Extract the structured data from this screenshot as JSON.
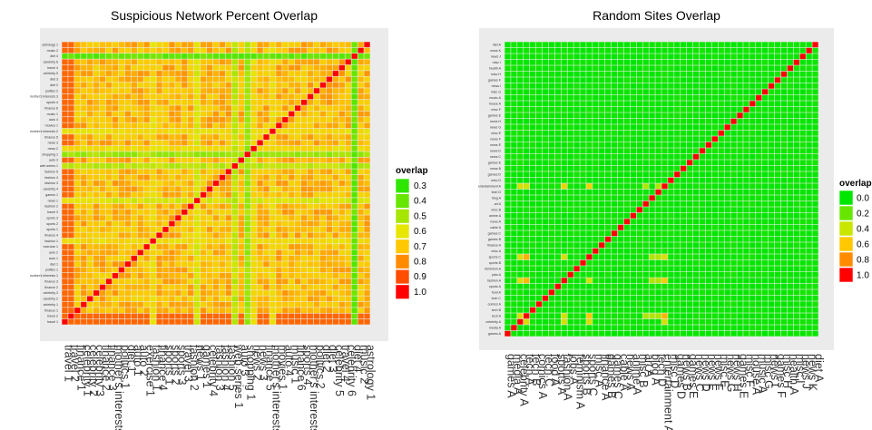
{
  "chart_data": [
    {
      "type": "heatmap",
      "title": "Suspicious Network Percent Overlap",
      "labels": [
        "travel 1",
        "travel 2",
        "finance 1",
        "celebrity 1",
        "celebrity 2",
        "celebrity 3",
        "finance 2",
        "finance 3",
        "mother's interests 1",
        "politics 1",
        "diet 1",
        "auto 1",
        "auto 2",
        "exercise 1",
        "fashion 1",
        "finance 4",
        "sports 1",
        "sports 2",
        "sports 3",
        "travel 3",
        "fashion 2",
        "news 1",
        "games 1",
        "celebrity 4",
        "fashion 3",
        "fashion 4",
        "fashion 5",
        "web series 1",
        "auto 3",
        "shopping 1",
        "news 2",
        "news 3",
        "finance 5",
        "mother's interests 2",
        "movies 1",
        "auto 4",
        "music 1",
        "finance 6",
        "sports 4",
        "mother's interests 3",
        "politics 2",
        "diet 2",
        "diet 3",
        "celebrity 5",
        "travel 4",
        "celebrity 6",
        "diet 4",
        "music 2",
        "astrology 1"
      ],
      "label_rule": {
        "first_four": "dark red at bottom-left to orange, strong red diagonal"
      },
      "row_colors": {
        "0": "#ff1a00",
        "1": "#ff4d00"
      },
      "base_value": 0.72,
      "diagonal_value": 1.0,
      "low_columns": {
        "diet 4": 0.35,
        "news 1": 0.55,
        "shopping 1": 0.45,
        "web series 1": 0.5,
        "news 2": 0.6,
        "mother's interests 2": 0.6,
        "fashion 1": 0.6
      },
      "legend": {
        "title": "overlap",
        "entries": [
          "0.3",
          "0.4",
          "0.5",
          "0.6",
          "0.7",
          "0.8",
          "0.9",
          "1.0"
        ],
        "colors": [
          "#2ee600",
          "#66e600",
          "#a6e600",
          "#e6e600",
          "#ffc800",
          "#ff8c00",
          "#ff4d00",
          "#ff0000"
        ]
      }
    },
    {
      "type": "heatmap",
      "title": "Random Sites Overlap",
      "labels": [
        "games A",
        "media A",
        "celebrity A",
        "tech A",
        "tech B",
        "comics A",
        "tech C",
        "food A",
        "sports A",
        "fashion A",
        "jobs A",
        "feminism A",
        "sports B",
        "sports C",
        "misc A",
        "finance A",
        "games B",
        "games C",
        "cable A",
        "news A",
        "anime A",
        "misc B",
        "art A",
        "blog A",
        "tech D",
        "entertainment A",
        "misc D",
        "games D",
        "news B",
        "games E",
        "news C",
        "news D",
        "news E",
        "news F",
        "misc E",
        "news G",
        "news H",
        "games E",
        "misc F",
        "house A",
        "music A",
        "misc G",
        "news I",
        "games F",
        "misc H",
        "health A",
        "misc I",
        "news J",
        "news K",
        "diet A"
      ],
      "base_value": 0.0,
      "diagonal_value": 1.0,
      "hot_rows": [
        "entertainment A",
        "sports C",
        "fashion A",
        "tech A"
      ],
      "legend": {
        "title": "overlap",
        "entries": [
          "0.0",
          "0.2",
          "0.4",
          "0.6",
          "0.8",
          "1.0"
        ],
        "colors": [
          "#00e600",
          "#66e600",
          "#c8e600",
          "#ffc800",
          "#ff8c00",
          "#ff0000"
        ]
      }
    }
  ]
}
